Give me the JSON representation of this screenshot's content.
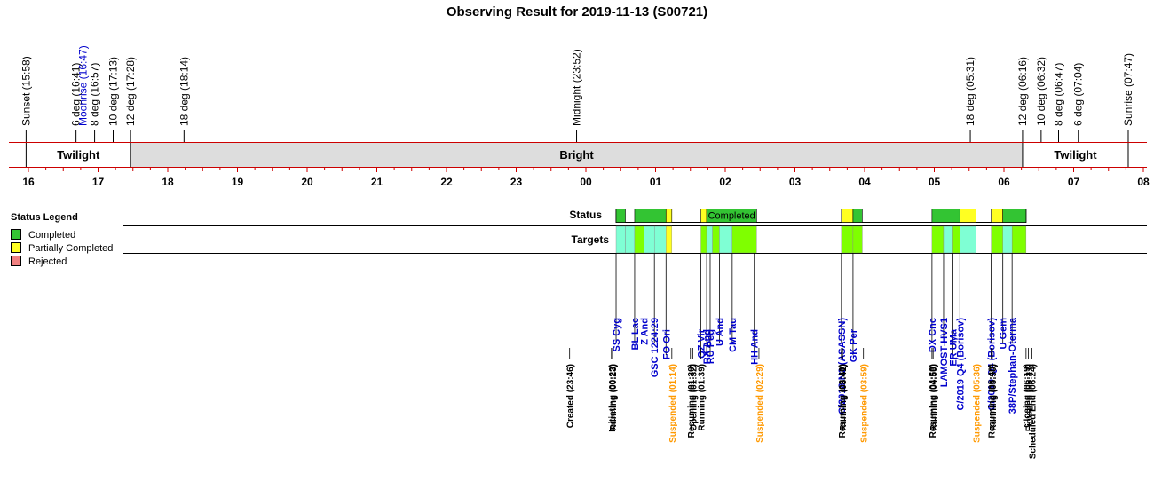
{
  "title": "Observing Result for 2019-11-13 (S00721)",
  "colors": {
    "completed": "#33c433",
    "partial": "#ffff22",
    "rejected": "#f08080",
    "bright": "#dddddd",
    "target_cyan": "#7fffd4",
    "target_green": "#7fff00",
    "red_line": "#cc0000",
    "blue_text": "#0000cc",
    "orange_text": "#ff9900"
  },
  "legend": {
    "title": "Status Legend",
    "items": [
      {
        "label": "Completed",
        "color": "#33c433"
      },
      {
        "label": "Partially Completed",
        "color": "#ffff22"
      },
      {
        "label": "Rejected",
        "color": "#f08080"
      }
    ]
  },
  "timeline": {
    "hour_labels": [
      "16",
      "17",
      "18",
      "19",
      "20",
      "21",
      "22",
      "23",
      "00",
      "01",
      "02",
      "03",
      "04",
      "05",
      "06",
      "07",
      "08"
    ],
    "twilight_markers": [
      {
        "text": "Sunset (15:58)",
        "color": "black"
      },
      {
        "text": "6 deg (16:41)",
        "color": "black"
      },
      {
        "text": "Moonrise (16:47)",
        "color": "blue"
      },
      {
        "text": "8 deg (16:57)",
        "color": "black"
      },
      {
        "text": "10 deg (17:13)",
        "color": "black"
      },
      {
        "text": "12 deg (17:28)",
        "color": "black"
      },
      {
        "text": "18 deg (18:14)",
        "color": "black"
      },
      {
        "text": "Midnight (23:52)",
        "color": "black"
      },
      {
        "text": "18 deg (05:31)",
        "color": "black"
      },
      {
        "text": "12 deg (06:16)",
        "color": "black"
      },
      {
        "text": "10 deg (06:32)",
        "color": "black"
      },
      {
        "text": "8 deg (06:47)",
        "color": "black"
      },
      {
        "text": "6 deg (07:04)",
        "color": "black"
      },
      {
        "text": "Sunrise (07:47)",
        "color": "black"
      }
    ],
    "sky_bands": [
      {
        "label": "Twilight",
        "start": "15:58",
        "end": "17:28",
        "shade": "white"
      },
      {
        "label": "Bright",
        "start": "17:28",
        "end": "06:16",
        "shade": "grey"
      },
      {
        "label": "Twilight",
        "start": "06:16",
        "end": "07:47",
        "shade": "white"
      }
    ]
  },
  "rows": {
    "status_label": "Status",
    "targets_label": "Targets",
    "status_text": "Completed"
  },
  "status_segments": [
    {
      "start": "00:26",
      "end": "00:34",
      "status": "completed"
    },
    {
      "start": "00:42",
      "end": "01:09",
      "status": "completed"
    },
    {
      "start": "01:09",
      "end": "01:14",
      "status": "partial"
    },
    {
      "start": "01:39",
      "end": "01:44",
      "status": "partial"
    },
    {
      "start": "01:44",
      "end": "02:27",
      "status": "completed"
    },
    {
      "start": "03:40",
      "end": "03:50",
      "status": "partial"
    },
    {
      "start": "03:50",
      "end": "03:58",
      "status": "completed"
    },
    {
      "start": "04:58",
      "end": "05:22",
      "status": "completed"
    },
    {
      "start": "05:22",
      "end": "05:36",
      "status": "partial"
    },
    {
      "start": "05:49",
      "end": "05:59",
      "status": "partial"
    },
    {
      "start": "05:59",
      "end": "06:19",
      "status": "completed"
    }
  ],
  "target_blocks": [
    {
      "start": "00:26",
      "end": "00:34",
      "fill": "cyan"
    },
    {
      "start": "00:34",
      "end": "00:42",
      "fill": "cyan"
    },
    {
      "start": "00:42",
      "end": "00:50",
      "fill": "green"
    },
    {
      "start": "00:50",
      "end": "00:59",
      "fill": "cyan"
    },
    {
      "start": "00:59",
      "end": "01:09",
      "fill": "cyan"
    },
    {
      "start": "01:09",
      "end": "01:14",
      "fill": "yellow"
    },
    {
      "start": "01:39",
      "end": "01:44",
      "fill": "green"
    },
    {
      "start": "01:44",
      "end": "01:49",
      "fill": "cyan"
    },
    {
      "start": "01:49",
      "end": "01:55",
      "fill": "green"
    },
    {
      "start": "01:55",
      "end": "02:06",
      "fill": "cyan"
    },
    {
      "start": "02:06",
      "end": "02:27",
      "fill": "green"
    },
    {
      "start": "03:40",
      "end": "03:50",
      "fill": "green"
    },
    {
      "start": "03:50",
      "end": "03:58",
      "fill": "green"
    },
    {
      "start": "04:58",
      "end": "05:08",
      "fill": "green"
    },
    {
      "start": "05:08",
      "end": "05:16",
      "fill": "cyan"
    },
    {
      "start": "05:16",
      "end": "05:22",
      "fill": "green"
    },
    {
      "start": "05:22",
      "end": "05:36",
      "fill": "cyan"
    },
    {
      "start": "05:49",
      "end": "05:59",
      "fill": "green"
    },
    {
      "start": "05:59",
      "end": "06:07",
      "fill": "cyan"
    },
    {
      "start": "06:07",
      "end": "06:19",
      "fill": "green"
    }
  ],
  "target_labels": [
    {
      "text": "SS Cyg",
      "time": "00:26",
      "level": "upper"
    },
    {
      "text": "BL Lac",
      "time": "00:42",
      "level": "upper"
    },
    {
      "text": "Z And",
      "time": "00:50",
      "level": "upper"
    },
    {
      "text": "GSC 1224:29",
      "time": "00:59",
      "level": "upper"
    },
    {
      "text": "FO Ori",
      "time": "01:09",
      "level": "lower"
    },
    {
      "text": "QZ Vir",
      "time": "01:39",
      "level": "lower"
    },
    {
      "text": "RX And",
      "time": "01:44",
      "level": "lower"
    },
    {
      "text": "RU Peg",
      "time": "01:47",
      "level": "lower"
    },
    {
      "text": "U And",
      "time": "01:55",
      "level": "upper"
    },
    {
      "text": "CM Tau",
      "time": "02:06",
      "level": "upper"
    },
    {
      "text": "HH And",
      "time": "02:25",
      "level": "lower"
    },
    {
      "text": "C/2018 N2 (ASASSN)",
      "time": "03:40",
      "level": "upper"
    },
    {
      "text": "GK Per",
      "time": "03:50",
      "level": "lower"
    },
    {
      "text": "DX Cnc",
      "time": "04:58",
      "level": "upper"
    },
    {
      "text": "LAMOST-HVS1",
      "time": "05:08",
      "level": "upper"
    },
    {
      "text": "ER UMa",
      "time": "05:16",
      "level": "lower"
    },
    {
      "text": "C/2019 Q4 (Borisov)",
      "time": "05:22",
      "level": "upper"
    },
    {
      "text": "C/2019 Q4 (Borisov)",
      "time": "05:49",
      "level": "upper"
    },
    {
      "text": "U Gem",
      "time": "05:59",
      "level": "upper"
    },
    {
      "text": "38P/Stephan-Oterma",
      "time": "06:07",
      "level": "upper"
    }
  ],
  "events": [
    {
      "text": "Created (23:46)",
      "time": "23:46",
      "color": "black"
    },
    {
      "text": "Initiating (00:22)",
      "time": "00:22",
      "color": "black"
    },
    {
      "text": "Running (00:23)",
      "time": "00:23",
      "color": "black"
    },
    {
      "text": "Suspended (01:14)",
      "time": "01:14",
      "color": "orange"
    },
    {
      "text": "Resuming (01:30)",
      "time": "01:30",
      "color": "black"
    },
    {
      "text": "Opening (01:32)",
      "time": "01:32",
      "color": "black"
    },
    {
      "text": "Running (01:39)",
      "time": "01:39",
      "color": "black"
    },
    {
      "text": "Suspended (02:29)",
      "time": "02:29",
      "color": "orange"
    },
    {
      "text": "Resuming (03:40)",
      "time": "03:40",
      "color": "black"
    },
    {
      "text": "Running (03:41)",
      "time": "03:41",
      "color": "black"
    },
    {
      "text": "Suspended (03:59)",
      "time": "03:59",
      "color": "orange"
    },
    {
      "text": "Resuming (04:58)",
      "time": "04:58",
      "color": "black"
    },
    {
      "text": "Running (04:59)",
      "time": "04:59",
      "color": "black"
    },
    {
      "text": "Suspended (05:36)",
      "time": "05:36",
      "color": "orange"
    },
    {
      "text": "Resuming (05:49)",
      "time": "05:49",
      "color": "black"
    },
    {
      "text": "Running (05:50)",
      "time": "05:50",
      "color": "black"
    },
    {
      "text": "Closing (06:19)",
      "time": "06:19",
      "color": "black"
    },
    {
      "text": "Finished (06:21)",
      "time": "06:21",
      "color": "black"
    },
    {
      "text": "Scheduled End (06:24)",
      "time": "06:24",
      "color": "black"
    }
  ]
}
